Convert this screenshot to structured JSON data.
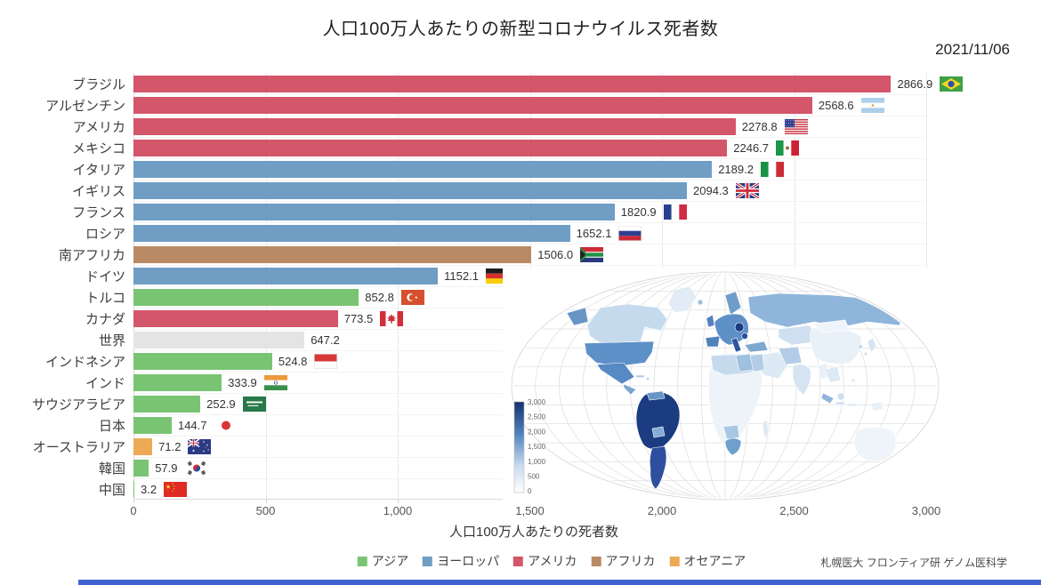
{
  "page": {
    "date": "2021/11/06",
    "credit": "札幌医大 フロンティア研 ゲノム医科学"
  },
  "chart_data": {
    "type": "bar",
    "orientation": "horizontal",
    "title": "人口100万人あたりの新型コロナウイルス死者数",
    "xlabel": "人口100万人あたりの死者数",
    "xlim": [
      0,
      3000
    ],
    "grid": true,
    "legend_position": "bottom",
    "x_ticks": [
      "0",
      "500",
      "1,000",
      "1,500",
      "2,000",
      "2,500",
      "3,000"
    ],
    "categories": [
      "ブラジル",
      "アルゼンチン",
      "アメリカ",
      "メキシコ",
      "イタリア",
      "イギリス",
      "フランス",
      "ロシア",
      "南アフリカ",
      "ドイツ",
      "トルコ",
      "カナダ",
      "世界",
      "インドネシア",
      "インド",
      "サウジアラビア",
      "日本",
      "オーストラリア",
      "韓国",
      "中国"
    ],
    "values": [
      2866.9,
      2568.6,
      2278.8,
      2246.7,
      2189.2,
      2094.3,
      1820.9,
      1652.1,
      1506.0,
      1152.1,
      852.8,
      773.5,
      647.2,
      524.8,
      333.9,
      252.9,
      144.7,
      71.2,
      57.9,
      3.2
    ],
    "value_labels": [
      "2866.9",
      "2568.6",
      "2278.8",
      "2246.7",
      "2189.2",
      "2094.3",
      "1820.9",
      "1652.1",
      "1506.0",
      "1152.1",
      "852.8",
      "773.5",
      "647.2",
      "524.8",
      "333.9",
      "252.9",
      "144.7",
      "71.2",
      "57.9",
      "3.2"
    ],
    "regions": [
      "americas",
      "americas",
      "americas",
      "americas",
      "europe",
      "europe",
      "europe",
      "europe",
      "africa",
      "europe",
      "asia",
      "americas",
      "world",
      "asia",
      "asia",
      "asia",
      "asia",
      "oceania",
      "asia",
      "asia"
    ],
    "flags": [
      "br",
      "ar",
      "us",
      "mx",
      "it",
      "gb",
      "fr",
      "ru",
      "za",
      "de",
      "tr",
      "ca",
      "",
      "id",
      "in",
      "sa",
      "jp",
      "au",
      "kr",
      "cn"
    ]
  },
  "region_colors": {
    "asia": "#79c473",
    "europe": "#6f9dc4",
    "americas": "#d4566a",
    "africa": "#ba8a65",
    "oceania": "#ecaa55",
    "world": "#e4e4e4"
  },
  "legend": {
    "items": [
      {
        "label": "アジア",
        "color": "#79c473"
      },
      {
        "label": "ヨーロッパ",
        "color": "#6f9dc4"
      },
      {
        "label": "アメリカ",
        "color": "#d4566a"
      },
      {
        "label": "アフリカ",
        "color": "#ba8a65"
      },
      {
        "label": "オセアニア",
        "color": "#ecaa55"
      }
    ]
  },
  "map": {
    "colorbar_ticks": [
      "3,000",
      "2,500",
      "2,000",
      "1,500",
      "1,000",
      "500",
      "0"
    ]
  }
}
